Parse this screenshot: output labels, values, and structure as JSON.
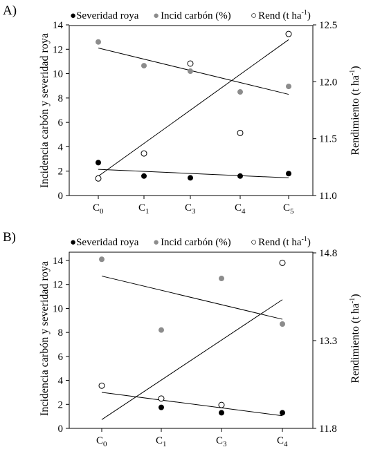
{
  "chart_data": [
    {
      "panel_label": "A)",
      "type": "scatter",
      "categories": [
        "C0",
        "C1",
        "C3",
        "C4",
        "C5"
      ],
      "category_parts": [
        {
          "base": "C",
          "sub": "0"
        },
        {
          "base": "C",
          "sub": "1"
        },
        {
          "base": "C",
          "sub": "3"
        },
        {
          "base": "C",
          "sub": "4"
        },
        {
          "base": "C",
          "sub": "5"
        }
      ],
      "ylabel": "Incidencia carbón y severidad roya",
      "ylabel_right": {
        "main": "Rendimiento (t ha",
        "sup": "-1",
        "end": ")"
      },
      "ylim": [
        0,
        14
      ],
      "yticks": [
        "0",
        "2",
        "4",
        "6",
        "8",
        "10",
        "12",
        "14"
      ],
      "ylim_right": [
        11.0,
        12.5
      ],
      "yticks_right": [
        "11.0",
        "11.5",
        "12.0",
        "12.5"
      ],
      "legend": [
        {
          "symbol": "●",
          "text": "Severidad roya"
        },
        {
          "symbol": "●",
          "text": "Incid carbón (%)"
        },
        {
          "symbol": "○",
          "text": "Rend (t ha",
          "sup": "-1",
          "end": ")"
        }
      ],
      "series": [
        {
          "name": "Severidad roya",
          "axis": "left",
          "marker": "filled",
          "color": "#000000",
          "values": [
            2.7,
            1.6,
            1.45,
            1.6,
            1.8
          ],
          "trend": [
            2.15,
            1.45
          ]
        },
        {
          "name": "Incid carbón (%)",
          "axis": "left",
          "marker": "filled",
          "color": "#8c8c8c",
          "values": [
            12.6,
            10.65,
            10.2,
            8.5,
            8.95
          ],
          "trend": [
            12.1,
            8.3
          ]
        },
        {
          "name": "Rend (t ha-1)",
          "axis": "right",
          "marker": "open",
          "color": "#000000",
          "values": [
            11.15,
            11.37,
            12.16,
            11.55,
            12.42
          ],
          "trend": [
            11.17,
            12.37
          ]
        }
      ]
    },
    {
      "panel_label": "B)",
      "type": "scatter",
      "categories": [
        "C0",
        "C1",
        "C3",
        "C4"
      ],
      "category_parts": [
        {
          "base": "C",
          "sub": "0"
        },
        {
          "base": "C",
          "sub": "1"
        },
        {
          "base": "C",
          "sub": "3"
        },
        {
          "base": "C",
          "sub": "4"
        }
      ],
      "ylabel": "Incidencia carbón y severidad roya",
      "ylabel_right": {
        "main": "Rendimiento (t ha",
        "sup": "-1",
        "end": ")"
      },
      "ylim": [
        0,
        14
      ],
      "yticks": [
        "0",
        "2",
        "4",
        "6",
        "8",
        "10",
        "12",
        "14"
      ],
      "ylim_right": [
        11.8,
        14.8
      ],
      "yticks_right": [
        "11.8",
        "13.3",
        "14.8"
      ],
      "legend": [
        {
          "symbol": "●",
          "text": "Severidad roya"
        },
        {
          "symbol": "●",
          "text": "Incid carbón (%)"
        },
        {
          "symbol": "○",
          "text": "Rend (t ha",
          "sup": "-1",
          "end": ")"
        }
      ],
      "series": [
        {
          "name": "Severidad roya",
          "axis": "left",
          "marker": "filled",
          "color": "#000000",
          "values": [
            null,
            1.75,
            1.3,
            1.3
          ],
          "trend": [
            3.0,
            1.05
          ]
        },
        {
          "name": "Incid carbón (%)",
          "axis": "left",
          "marker": "filled",
          "color": "#8c8c8c",
          "values": [
            14.1,
            8.2,
            12.5,
            8.7
          ],
          "trend": [
            12.7,
            9.1
          ]
        },
        {
          "name": "Rend (t ha-1)",
          "axis": "right",
          "marker": "open",
          "color": "#000000",
          "values": [
            12.53,
            12.31,
            12.2,
            14.63
          ],
          "trend": [
            11.95,
            14.0
          ]
        }
      ]
    }
  ]
}
